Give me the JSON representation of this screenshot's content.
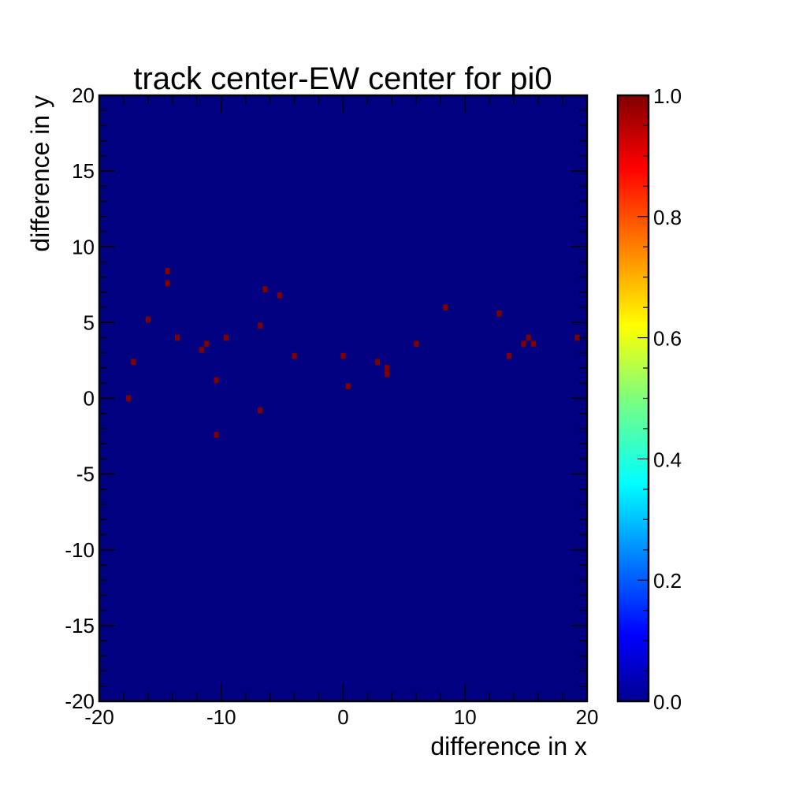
{
  "chart_data": {
    "type": "heatmap",
    "title": "track center-EW center for pi0",
    "xlabel": "difference in x",
    "ylabel": "difference in y",
    "xlim": [
      -20,
      20
    ],
    "ylim": [
      -20,
      20
    ],
    "x_ticks": [
      -20,
      -10,
      0,
      10,
      20
    ],
    "x_tick_labels": [
      "-20",
      "-10",
      "0",
      "10",
      "20"
    ],
    "y_ticks": [
      -20,
      -15,
      -10,
      -5,
      0,
      5,
      10,
      15,
      20
    ],
    "y_tick_labels": [
      "-20",
      "-15",
      "-10",
      "-5",
      "0",
      "5",
      "10",
      "15",
      "20"
    ],
    "bin_width": 0.4,
    "z_range": [
      0,
      1
    ],
    "colorbar_ticks": [
      0.0,
      0.2,
      0.4,
      0.6,
      0.8,
      1.0
    ],
    "colorbar_tick_labels": [
      "0.0",
      "0.2",
      "0.4",
      "0.6",
      "0.8",
      "1.0"
    ],
    "colormap": "jet",
    "background_color": "#000080",
    "filled_bin_color": "#800000",
    "grid": false,
    "filled_bins": [
      {
        "x": -17.8,
        "y": -0.2,
        "z": 1
      },
      {
        "x": -17.4,
        "y": 2.2,
        "z": 1
      },
      {
        "x": -16.2,
        "y": 5.0,
        "z": 1
      },
      {
        "x": -14.6,
        "y": 8.2,
        "z": 1
      },
      {
        "x": -14.6,
        "y": 7.4,
        "z": 1
      },
      {
        "x": -13.8,
        "y": 3.8,
        "z": 1
      },
      {
        "x": -11.8,
        "y": 3.0,
        "z": 1
      },
      {
        "x": -11.4,
        "y": 3.4,
        "z": 1
      },
      {
        "x": -10.6,
        "y": 1.0,
        "z": 1
      },
      {
        "x": -10.6,
        "y": -2.6,
        "z": 1
      },
      {
        "x": -9.8,
        "y": 3.8,
        "z": 1
      },
      {
        "x": -7.0,
        "y": 4.6,
        "z": 1
      },
      {
        "x": -7.0,
        "y": -1.0,
        "z": 1
      },
      {
        "x": -6.6,
        "y": 7.0,
        "z": 1
      },
      {
        "x": -5.4,
        "y": 6.6,
        "z": 1
      },
      {
        "x": -4.2,
        "y": 2.6,
        "z": 1
      },
      {
        "x": -0.2,
        "y": 2.6,
        "z": 1
      },
      {
        "x": 0.2,
        "y": 0.6,
        "z": 1
      },
      {
        "x": 2.6,
        "y": 2.2,
        "z": 1
      },
      {
        "x": 3.4,
        "y": 1.8,
        "z": 1
      },
      {
        "x": 3.4,
        "y": 1.4,
        "z": 1
      },
      {
        "x": 5.8,
        "y": 3.4,
        "z": 1
      },
      {
        "x": 8.2,
        "y": 5.8,
        "z": 1
      },
      {
        "x": 12.6,
        "y": 5.4,
        "z": 1
      },
      {
        "x": 13.4,
        "y": 2.6,
        "z": 1
      },
      {
        "x": 14.6,
        "y": 3.4,
        "z": 1
      },
      {
        "x": 15.0,
        "y": 3.8,
        "z": 1
      },
      {
        "x": 15.4,
        "y": 3.4,
        "z": 1
      },
      {
        "x": 19.0,
        "y": 3.8,
        "z": 1
      }
    ]
  }
}
